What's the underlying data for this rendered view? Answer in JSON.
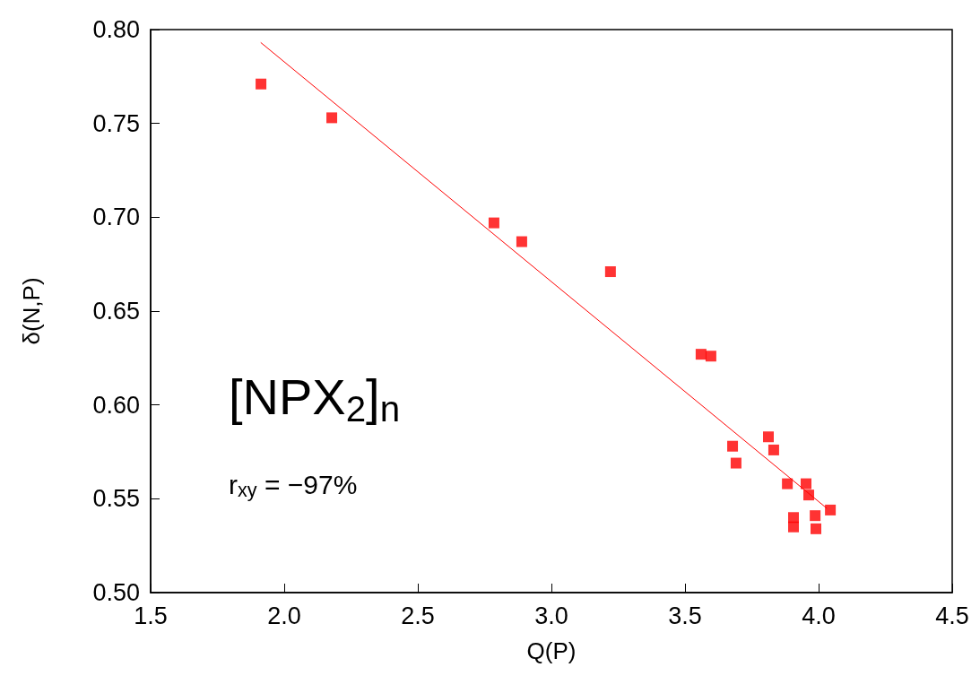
{
  "chart_data": {
    "type": "scatter",
    "xlabel": "Q(P)",
    "ylabel": "δ(N,P)",
    "annotations": [
      "[NPX$_{2}$]$_{n}$",
      "r$_{xy}$ = −97%"
    ],
    "xlim": [
      1.5,
      4.5
    ],
    "xticks": [
      {
        "value": 1.5,
        "label": "1.5"
      },
      {
        "value": 2,
        "label": "2.0"
      },
      {
        "value": 2.5,
        "label": "2.5"
      },
      {
        "value": 3,
        "label": "3.0"
      },
      {
        "value": 3.5,
        "label": "3.5"
      },
      {
        "value": 4,
        "label": "4.0"
      },
      {
        "value": 4.5,
        "label": "4.5"
      }
    ],
    "ylim": [
      0.5,
      0.8
    ],
    "yticks": [
      {
        "value": 0.5,
        "label": "0.50"
      },
      {
        "value": 0.55,
        "label": "0.55"
      },
      {
        "value": 0.6,
        "label": "0.60"
      },
      {
        "value": 0.65,
        "label": "0.65"
      },
      {
        "value": 0.7,
        "label": "0.70"
      },
      {
        "value": 0.75,
        "label": "0.75"
      },
      {
        "value": 0.8,
        "label": "0.80"
      }
    ],
    "grid": false,
    "series": [
      {
        "color": "#ff0000",
        "marker": "square",
        "x": [
          1.913,
          2.178,
          2.785,
          2.889,
          3.221,
          3.56,
          3.597,
          3.678,
          3.691,
          3.812,
          3.832,
          3.883,
          3.953,
          3.963,
          4.044,
          3.906,
          3.906,
          3.987,
          3.99
        ],
        "values": [
          0.771,
          0.753,
          0.697,
          0.687,
          0.671,
          0.627,
          0.626,
          0.578,
          0.569,
          0.583,
          0.576,
          0.558,
          0.558,
          0.552,
          0.544,
          0.54,
          0.535,
          0.541,
          0.534
        ]
      },
      {
        "type": "line",
        "color": "#ff0000",
        "marker": "none",
        "line_style": "solid",
        "x": [
          1.913,
          4.03
        ],
        "values": [
          0.793,
          0.545
        ]
      }
    ]
  }
}
